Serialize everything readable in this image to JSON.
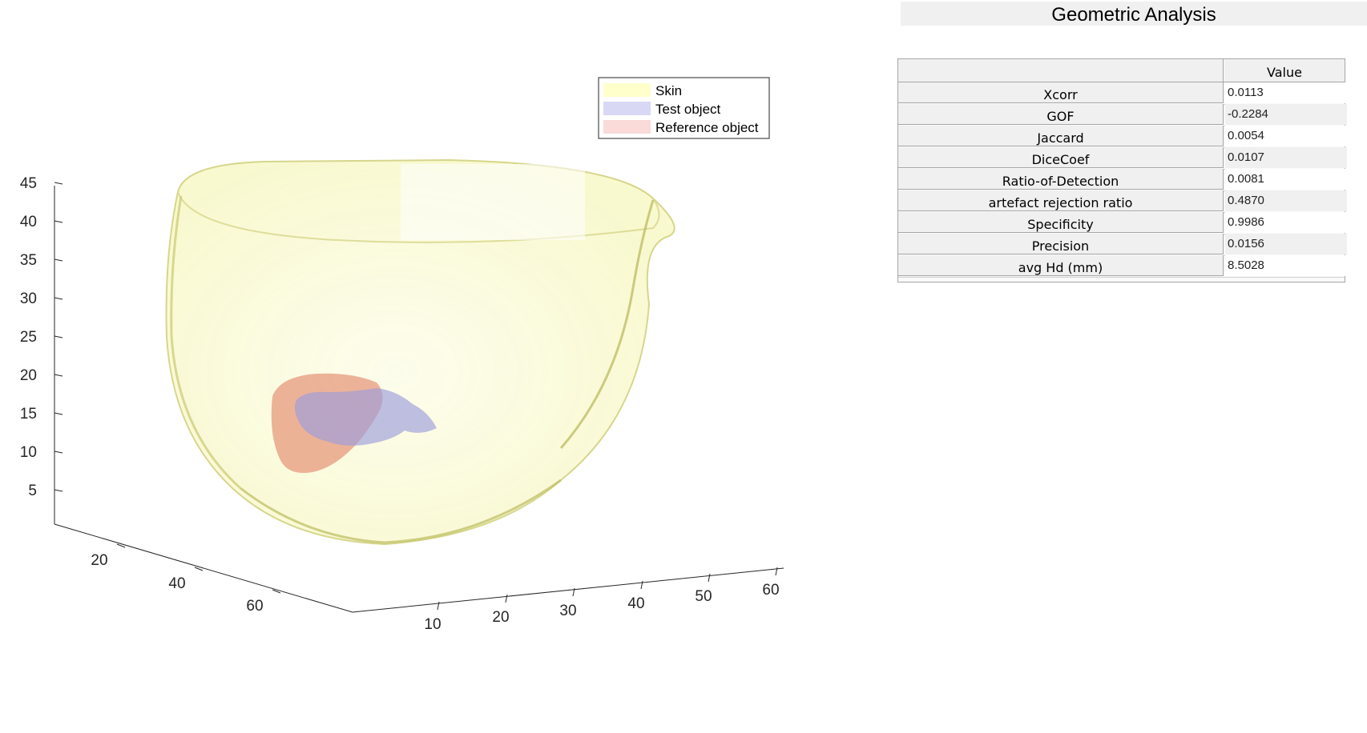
{
  "plot": {
    "legend": [
      {
        "label": "Skin",
        "color": "#ffffcc"
      },
      {
        "label": "Test object",
        "color": "#d8d8f5"
      },
      {
        "label": "Reference object",
        "color": "#fbdada"
      }
    ],
    "z_ticks": [
      "45",
      "40",
      "35",
      "30",
      "25",
      "20",
      "15",
      "10",
      "5"
    ],
    "y_ticks": [
      "20",
      "40",
      "60"
    ],
    "x_ticks": [
      "10",
      "20",
      "30",
      "40",
      "50",
      "60"
    ],
    "colors": {
      "skin_fill": "#f7f7b0",
      "skin_edge": "#c8c86e",
      "test_object": "#9c9cdc",
      "reference_object": "#e79a7e",
      "axis": "#262626"
    }
  },
  "panel": {
    "title": "Geometric Analysis",
    "column_header": "Value",
    "rows": [
      {
        "name": "Xcorr",
        "value": "0.0113"
      },
      {
        "name": "GOF",
        "value": "-0.2284"
      },
      {
        "name": "Jaccard",
        "value": "0.0054"
      },
      {
        "name": "DiceCoef",
        "value": "0.0107"
      },
      {
        "name": "Ratio-of-Detection",
        "value": "0.0081"
      },
      {
        "name": "artefact rejection ratio",
        "value": "0.4870"
      },
      {
        "name": "Specificity",
        "value": "0.9986"
      },
      {
        "name": "Precision",
        "value": "0.0156"
      },
      {
        "name": "avg Hd (mm)",
        "value": "8.5028"
      }
    ]
  }
}
